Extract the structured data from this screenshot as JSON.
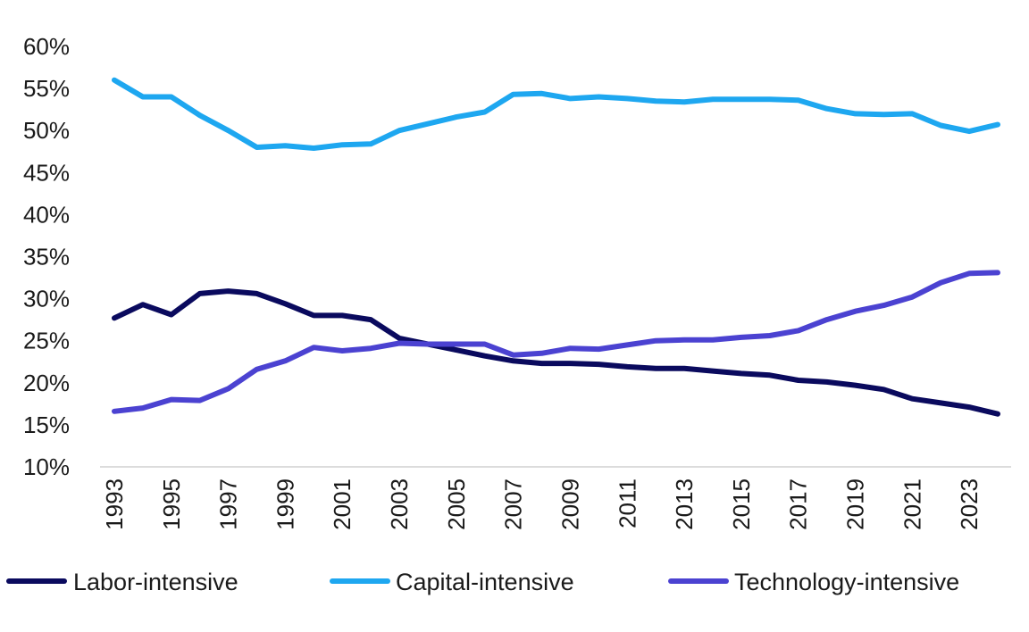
{
  "chart_data": {
    "type": "line",
    "title": "",
    "xlabel": "",
    "ylabel": "",
    "x": [
      1993,
      1994,
      1995,
      1996,
      1997,
      1998,
      1999,
      2000,
      2001,
      2002,
      2003,
      2004,
      2005,
      2006,
      2007,
      2008,
      2009,
      2010,
      2011,
      2012,
      2013,
      2014,
      2015,
      2016,
      2017,
      2018,
      2019,
      2020,
      2021,
      2022,
      2023,
      2024
    ],
    "x_tick_labels": [
      "1993",
      "1995",
      "1997",
      "1999",
      "2001",
      "2003",
      "2005",
      "2007",
      "2009",
      "2011",
      "2013",
      "2015",
      "2017",
      "2019",
      "2021",
      "2023"
    ],
    "ylim": [
      10,
      60
    ],
    "y_ticks": [
      10,
      15,
      20,
      25,
      30,
      35,
      40,
      45,
      50,
      55,
      60
    ],
    "y_tick_labels": [
      "10%",
      "15%",
      "20%",
      "25%",
      "30%",
      "35%",
      "40%",
      "45%",
      "50%",
      "55%",
      "60%"
    ],
    "grid": false,
    "legend_position": "bottom",
    "series": [
      {
        "name": "Labor-intensive",
        "color": "#0a0a5e",
        "values": [
          27.7,
          29.3,
          28.1,
          30.6,
          30.9,
          30.6,
          29.4,
          28.0,
          28.0,
          27.5,
          25.3,
          24.6,
          23.9,
          23.2,
          22.6,
          22.3,
          22.3,
          22.2,
          21.9,
          21.7,
          21.7,
          21.4,
          21.1,
          20.9,
          20.3,
          20.1,
          19.7,
          19.2,
          18.1,
          17.6,
          17.1,
          16.3
        ]
      },
      {
        "name": "Capital-intensive",
        "color": "#1ea7f0",
        "values": [
          56.0,
          54.0,
          54.0,
          51.8,
          50.0,
          48.0,
          48.2,
          47.9,
          48.3,
          48.4,
          50.0,
          50.8,
          51.6,
          52.2,
          54.3,
          54.4,
          53.8,
          54.0,
          53.8,
          53.5,
          53.4,
          53.7,
          53.7,
          53.7,
          53.6,
          52.6,
          52.0,
          51.9,
          52.0,
          50.6,
          49.9,
          50.7
        ]
      },
      {
        "name": "Technology-intensive",
        "color": "#4b42d1",
        "values": [
          16.6,
          17.0,
          18.0,
          17.9,
          19.3,
          21.6,
          22.6,
          24.2,
          23.8,
          24.1,
          24.7,
          24.6,
          24.6,
          24.6,
          23.3,
          23.5,
          24.1,
          24.0,
          24.5,
          25.0,
          25.1,
          25.1,
          25.4,
          25.6,
          26.2,
          27.5,
          28.5,
          29.2,
          30.2,
          31.9,
          33.0,
          33.1
        ]
      }
    ]
  }
}
